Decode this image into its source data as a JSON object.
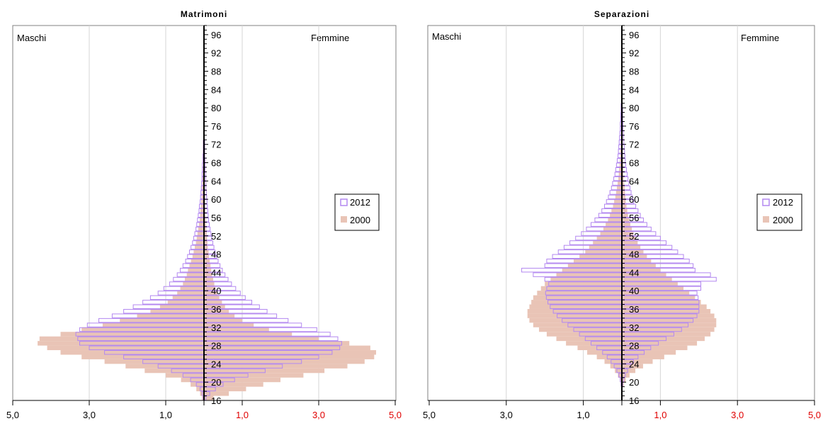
{
  "chart_data": [
    {
      "type": "bar",
      "orientation": "horizontal-pyramid",
      "title": "Matrimoni",
      "left_label": "Maschi",
      "right_label": "Femmine",
      "x_ticks_left": [
        "5,0",
        "3,0",
        "1,0"
      ],
      "x_ticks_right": [
        "1,0",
        "3,0",
        "5,0"
      ],
      "xlim": [
        0,
        5
      ],
      "age_range": [
        16,
        98
      ],
      "age_tick_labels": [
        "16",
        "20",
        "24",
        "28",
        "32",
        "36",
        "40",
        "44",
        "48",
        "52",
        "56",
        "60",
        "64",
        "68",
        "72",
        "76",
        "80",
        "84",
        "88",
        "92",
        "96"
      ],
      "legend": [
        {
          "name": "2012",
          "style": "outline",
          "color": "#b388f0"
        },
        {
          "name": "2000",
          "style": "fill",
          "color": "#e9c4b6"
        }
      ],
      "ages": [
        16,
        17,
        18,
        19,
        20,
        21,
        22,
        23,
        24,
        25,
        26,
        27,
        28,
        29,
        30,
        31,
        32,
        33,
        34,
        35,
        36,
        37,
        38,
        39,
        40,
        41,
        42,
        43,
        44,
        45,
        46,
        47,
        48,
        49,
        50,
        51,
        52,
        53,
        54,
        55,
        56,
        57,
        58,
        59,
        60,
        61,
        62,
        63,
        64,
        65,
        66,
        67,
        68,
        69,
        70,
        71,
        72
      ],
      "series": [
        {
          "name": "2000",
          "side": "male",
          "values": [
            0.05,
            0.1,
            0.2,
            0.35,
            0.6,
            1.0,
            1.55,
            2.05,
            2.6,
            3.2,
            3.75,
            4.1,
            4.35,
            4.3,
            3.75,
            3.2,
            2.65,
            2.2,
            1.75,
            1.4,
            1.15,
            0.95,
            0.82,
            0.7,
            0.62,
            0.55,
            0.5,
            0.45,
            0.42,
            0.38,
            0.34,
            0.3,
            0.27,
            0.24,
            0.21,
            0.19,
            0.17,
            0.15,
            0.13,
            0.11,
            0.1,
            0.09,
            0.08,
            0.07,
            0.06,
            0.05,
            0.05,
            0.04,
            0.04,
            0.03,
            0.03,
            0.02,
            0.02,
            0.02,
            0.01,
            0.01,
            0.01
          ]
        },
        {
          "name": "2000",
          "side": "female",
          "values": [
            0.25,
            0.65,
            1.1,
            1.55,
            2.0,
            2.6,
            3.15,
            3.75,
            4.2,
            4.45,
            4.5,
            4.35,
            3.8,
            3.0,
            2.3,
            1.7,
            1.3,
            1.0,
            0.8,
            0.65,
            0.55,
            0.47,
            0.4,
            0.35,
            0.3,
            0.27,
            0.24,
            0.21,
            0.19,
            0.17,
            0.15,
            0.13,
            0.12,
            0.1,
            0.09,
            0.08,
            0.07,
            0.06,
            0.05,
            0.05,
            0.04,
            0.04,
            0.03,
            0.03,
            0.03,
            0.02,
            0.02,
            0.02,
            0.02,
            0.01,
            0.01,
            0.01,
            0.01,
            0.01,
            0.01,
            0.01,
            0.01
          ]
        },
        {
          "name": "2012",
          "side": "male",
          "values": [
            0.02,
            0.05,
            0.1,
            0.2,
            0.35,
            0.55,
            0.85,
            1.2,
            1.6,
            2.1,
            2.6,
            3.0,
            3.25,
            3.3,
            3.35,
            3.25,
            3.05,
            2.75,
            2.4,
            2.1,
            1.85,
            1.6,
            1.4,
            1.2,
            1.05,
            0.9,
            0.8,
            0.7,
            0.62,
            0.55,
            0.48,
            0.43,
            0.38,
            0.34,
            0.3,
            0.27,
            0.24,
            0.21,
            0.19,
            0.17,
            0.15,
            0.13,
            0.12,
            0.1,
            0.09,
            0.08,
            0.07,
            0.06,
            0.05,
            0.05,
            0.04,
            0.04,
            0.03,
            0.03,
            0.02,
            0.02,
            0.02
          ]
        },
        {
          "name": "2012",
          "side": "female",
          "values": [
            0.05,
            0.15,
            0.3,
            0.5,
            0.8,
            1.15,
            1.6,
            2.05,
            2.55,
            3.0,
            3.35,
            3.55,
            3.6,
            3.5,
            3.3,
            2.95,
            2.55,
            2.2,
            1.9,
            1.65,
            1.45,
            1.25,
            1.08,
            0.95,
            0.83,
            0.72,
            0.63,
            0.55,
            0.48,
            0.42,
            0.37,
            0.33,
            0.29,
            0.26,
            0.23,
            0.2,
            0.18,
            0.16,
            0.14,
            0.12,
            0.11,
            0.1,
            0.09,
            0.08,
            0.07,
            0.06,
            0.05,
            0.05,
            0.04,
            0.04,
            0.03,
            0.03,
            0.03,
            0.02,
            0.02,
            0.02,
            0.02
          ]
        }
      ]
    },
    {
      "type": "bar",
      "orientation": "horizontal-pyramid",
      "title": "Separazioni",
      "left_label": "Maschi",
      "right_label": "Femmine",
      "x_ticks_left": [
        "5,0",
        "3,0",
        "1,0"
      ],
      "x_ticks_right": [
        "1,0",
        "3,0",
        "5,0"
      ],
      "xlim": [
        0,
        5
      ],
      "age_range": [
        16,
        98
      ],
      "age_tick_labels": [
        "16",
        "20",
        "24",
        "28",
        "32",
        "36",
        "40",
        "44",
        "48",
        "52",
        "56",
        "60",
        "64",
        "68",
        "72",
        "76",
        "80",
        "84",
        "88",
        "92",
        "96"
      ],
      "legend": [
        {
          "name": "2012",
          "style": "outline",
          "color": "#b388f0"
        },
        {
          "name": "2000",
          "style": "fill",
          "color": "#e9c4b6"
        }
      ],
      "ages": [
        19,
        20,
        21,
        22,
        23,
        24,
        25,
        26,
        27,
        28,
        29,
        30,
        31,
        32,
        33,
        34,
        35,
        36,
        37,
        38,
        39,
        40,
        41,
        42,
        43,
        44,
        45,
        46,
        47,
        48,
        49,
        50,
        51,
        52,
        53,
        54,
        55,
        56,
        57,
        58,
        59,
        60,
        61,
        62,
        63,
        64,
        65,
        66,
        67,
        68,
        69,
        70,
        71,
        72,
        73,
        74,
        75,
        76,
        77,
        78,
        79,
        80
      ],
      "series": [
        {
          "name": "2000",
          "side": "male",
          "values": [
            0.02,
            0.05,
            0.1,
            0.18,
            0.3,
            0.45,
            0.65,
            0.9,
            1.15,
            1.45,
            1.7,
            1.95,
            2.15,
            2.3,
            2.4,
            2.45,
            2.45,
            2.4,
            2.35,
            2.3,
            2.2,
            2.1,
            2.0,
            1.85,
            1.7,
            1.55,
            1.4,
            1.25,
            1.1,
            0.95,
            0.85,
            0.75,
            0.65,
            0.56,
            0.48,
            0.42,
            0.36,
            0.31,
            0.27,
            0.23,
            0.2,
            0.17,
            0.15,
            0.13,
            0.11,
            0.09,
            0.08,
            0.07,
            0.06,
            0.05,
            0.04,
            0.04,
            0.03,
            0.03,
            0.02,
            0.02,
            0.02,
            0.01,
            0.01,
            0.01,
            0.01,
            0.01
          ]
        },
        {
          "name": "2000",
          "side": "female",
          "values": [
            0.05,
            0.1,
            0.2,
            0.35,
            0.55,
            0.8,
            1.1,
            1.4,
            1.7,
            1.95,
            2.15,
            2.3,
            2.4,
            2.45,
            2.45,
            2.4,
            2.3,
            2.2,
            2.05,
            1.9,
            1.75,
            1.6,
            1.45,
            1.3,
            1.15,
            1.0,
            0.88,
            0.76,
            0.65,
            0.56,
            0.48,
            0.41,
            0.35,
            0.3,
            0.26,
            0.22,
            0.19,
            0.16,
            0.14,
            0.12,
            0.1,
            0.09,
            0.08,
            0.07,
            0.06,
            0.05,
            0.04,
            0.04,
            0.03,
            0.03,
            0.02,
            0.02,
            0.02,
            0.02,
            0.01,
            0.01,
            0.01,
            0.01,
            0.01,
            0.01,
            0.01,
            0.01
          ]
        },
        {
          "name": "2012",
          "side": "male",
          "values": [
            0.02,
            0.04,
            0.08,
            0.13,
            0.2,
            0.28,
            0.38,
            0.5,
            0.65,
            0.8,
            0.95,
            1.1,
            1.25,
            1.4,
            1.55,
            1.68,
            1.78,
            1.86,
            1.92,
            1.96,
            1.98,
            1.95,
            1.9,
            2.0,
            2.3,
            2.6,
            2.0,
            1.95,
            1.8,
            1.65,
            1.5,
            1.35,
            1.2,
            1.05,
            0.92,
            0.8,
            0.7,
            0.6,
            0.52,
            0.45,
            0.4,
            0.35,
            0.31,
            0.27,
            0.24,
            0.21,
            0.18,
            0.16,
            0.14,
            0.12,
            0.1,
            0.09,
            0.08,
            0.07,
            0.06,
            0.05,
            0.04,
            0.04,
            0.03,
            0.03,
            0.02,
            0.02
          ]
        },
        {
          "name": "2012",
          "side": "female",
          "values": [
            0.02,
            0.05,
            0.09,
            0.15,
            0.22,
            0.3,
            0.42,
            0.58,
            0.75,
            0.95,
            1.15,
            1.35,
            1.55,
            1.72,
            1.85,
            1.95,
            2.0,
            2.0,
            2.0,
            1.98,
            1.95,
            2.05,
            2.05,
            2.45,
            2.3,
            1.9,
            1.85,
            1.75,
            1.6,
            1.45,
            1.3,
            1.15,
            1.0,
            0.88,
            0.76,
            0.65,
            0.56,
            0.48,
            0.42,
            0.36,
            0.31,
            0.27,
            0.24,
            0.21,
            0.18,
            0.16,
            0.14,
            0.12,
            0.1,
            0.09,
            0.08,
            0.07,
            0.06,
            0.05,
            0.04,
            0.04,
            0.03,
            0.03,
            0.02,
            0.02,
            0.02,
            0.01
          ]
        }
      ]
    }
  ]
}
